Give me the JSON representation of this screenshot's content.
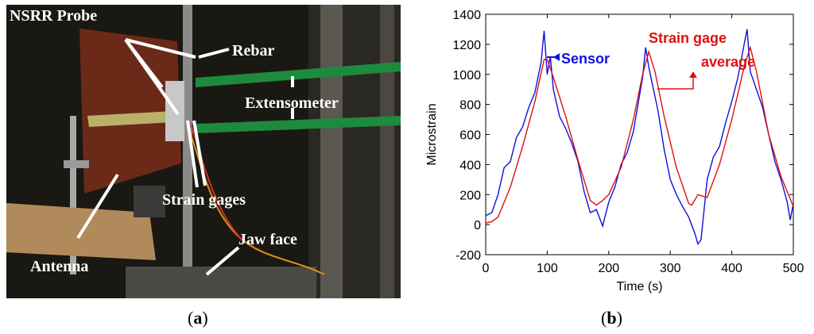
{
  "panel_a": {
    "caption_open": "(",
    "caption_letter": "a",
    "caption_close": ")",
    "labels": {
      "nsrr_probe": "NSRR Probe",
      "rebar": "Rebar",
      "extensometer": "Extensometer",
      "strain_gages": "Strain gages",
      "jaw_face": "Jaw face",
      "antenna": "Antenna"
    }
  },
  "panel_b": {
    "caption_open": "(",
    "caption_letter": "b",
    "caption_close": ")"
  },
  "colors": {
    "sensor": "#1010e0",
    "strain_gage": "#e01010",
    "arrow": "#ffffff",
    "label_text": "#ffffff"
  },
  "chart_data": {
    "type": "line",
    "xlabel": "Time (s)",
    "ylabel": "Microstrain",
    "xlim": [
      0,
      500
    ],
    "ylim": [
      -200,
      1400
    ],
    "xticks": [
      0,
      100,
      200,
      300,
      400,
      500
    ],
    "yticks": [
      -200,
      0,
      200,
      400,
      600,
      800,
      1000,
      1200,
      1400
    ],
    "grid": false,
    "annotations": [
      {
        "text": "Sensor",
        "color": "#1010e0"
      },
      {
        "text": "Strain gage",
        "color": "#e01010"
      },
      {
        "text": "average",
        "color": "#e01010"
      }
    ],
    "series": [
      {
        "name": "Sensor",
        "color": "#1010e0",
        "x": [
          0,
          10,
          20,
          30,
          40,
          50,
          60,
          70,
          80,
          90,
          95,
          100,
          105,
          110,
          120,
          130,
          140,
          150,
          160,
          170,
          180,
          190,
          200,
          210,
          220,
          230,
          240,
          250,
          255,
          260,
          265,
          270,
          280,
          290,
          300,
          310,
          320,
          330,
          340,
          345,
          350,
          360,
          370,
          380,
          390,
          400,
          410,
          420,
          425,
          430,
          440,
          450,
          460,
          470,
          480,
          490,
          495,
          500
        ],
        "y": [
          60,
          80,
          200,
          380,
          420,
          580,
          650,
          780,
          880,
          1080,
          1290,
          1000,
          1120,
          900,
          720,
          640,
          540,
          420,
          220,
          80,
          100,
          -10,
          150,
          250,
          400,
          480,
          620,
          860,
          980,
          1180,
          1050,
          950,
          760,
          500,
          300,
          200,
          120,
          50,
          -60,
          -130,
          -100,
          300,
          450,
          520,
          680,
          820,
          980,
          1200,
          1300,
          1020,
          900,
          780,
          600,
          420,
          300,
          150,
          30,
          140
        ]
      },
      {
        "name": "Strain gage average",
        "color": "#e01010",
        "x": [
          0,
          10,
          20,
          40,
          60,
          80,
          95,
          100,
          110,
          130,
          150,
          170,
          180,
          190,
          200,
          220,
          240,
          255,
          265,
          275,
          290,
          310,
          330,
          335,
          345,
          360,
          380,
          400,
          420,
          430,
          440,
          460,
          480,
          500
        ],
        "y": [
          10,
          20,
          50,
          250,
          520,
          820,
          1100,
          1100,
          980,
          720,
          430,
          160,
          130,
          160,
          200,
          380,
          700,
          1000,
          1150,
          1020,
          720,
          380,
          140,
          130,
          200,
          180,
          400,
          700,
          1050,
          1180,
          1020,
          600,
          320,
          120
        ]
      }
    ]
  }
}
